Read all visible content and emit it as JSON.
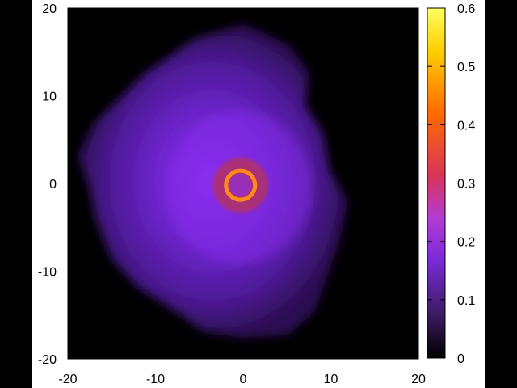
{
  "chart_data": {
    "type": "heatmap",
    "title": "",
    "xlabel": "",
    "ylabel": "",
    "xlim": [
      -20,
      20
    ],
    "ylim": [
      -20,
      20
    ],
    "x_ticks": [
      "-20",
      "-10",
      "0",
      "10",
      "20"
    ],
    "y_ticks": [
      "20",
      "10",
      "0",
      "-10",
      "-20"
    ],
    "colorbar": {
      "range": [
        0,
        0.6
      ],
      "ticks": [
        "0.6",
        "0.5",
        "0.4",
        "0.3",
        "0.2",
        "0.1",
        "0"
      ],
      "colormap": [
        "#000000",
        "#3a1a5e",
        "#7a2bd8",
        "#b43ad4",
        "#d8345a",
        "#ff6a00",
        "#ffd000",
        "#ffff60"
      ]
    },
    "features": {
      "cloud": {
        "center": [
          0,
          0
        ],
        "approx_radius": 17,
        "peak_value": 0.2,
        "edge_value": 0.07
      },
      "ring": {
        "center": [
          -0.3,
          -0.2
        ],
        "radius": 1.6,
        "value": 0.45
      },
      "core_halo": {
        "center": [
          -0.3,
          -0.2
        ],
        "radius": 3.2,
        "value": 0.3
      }
    },
    "background_color": "#000000",
    "grid": false
  }
}
